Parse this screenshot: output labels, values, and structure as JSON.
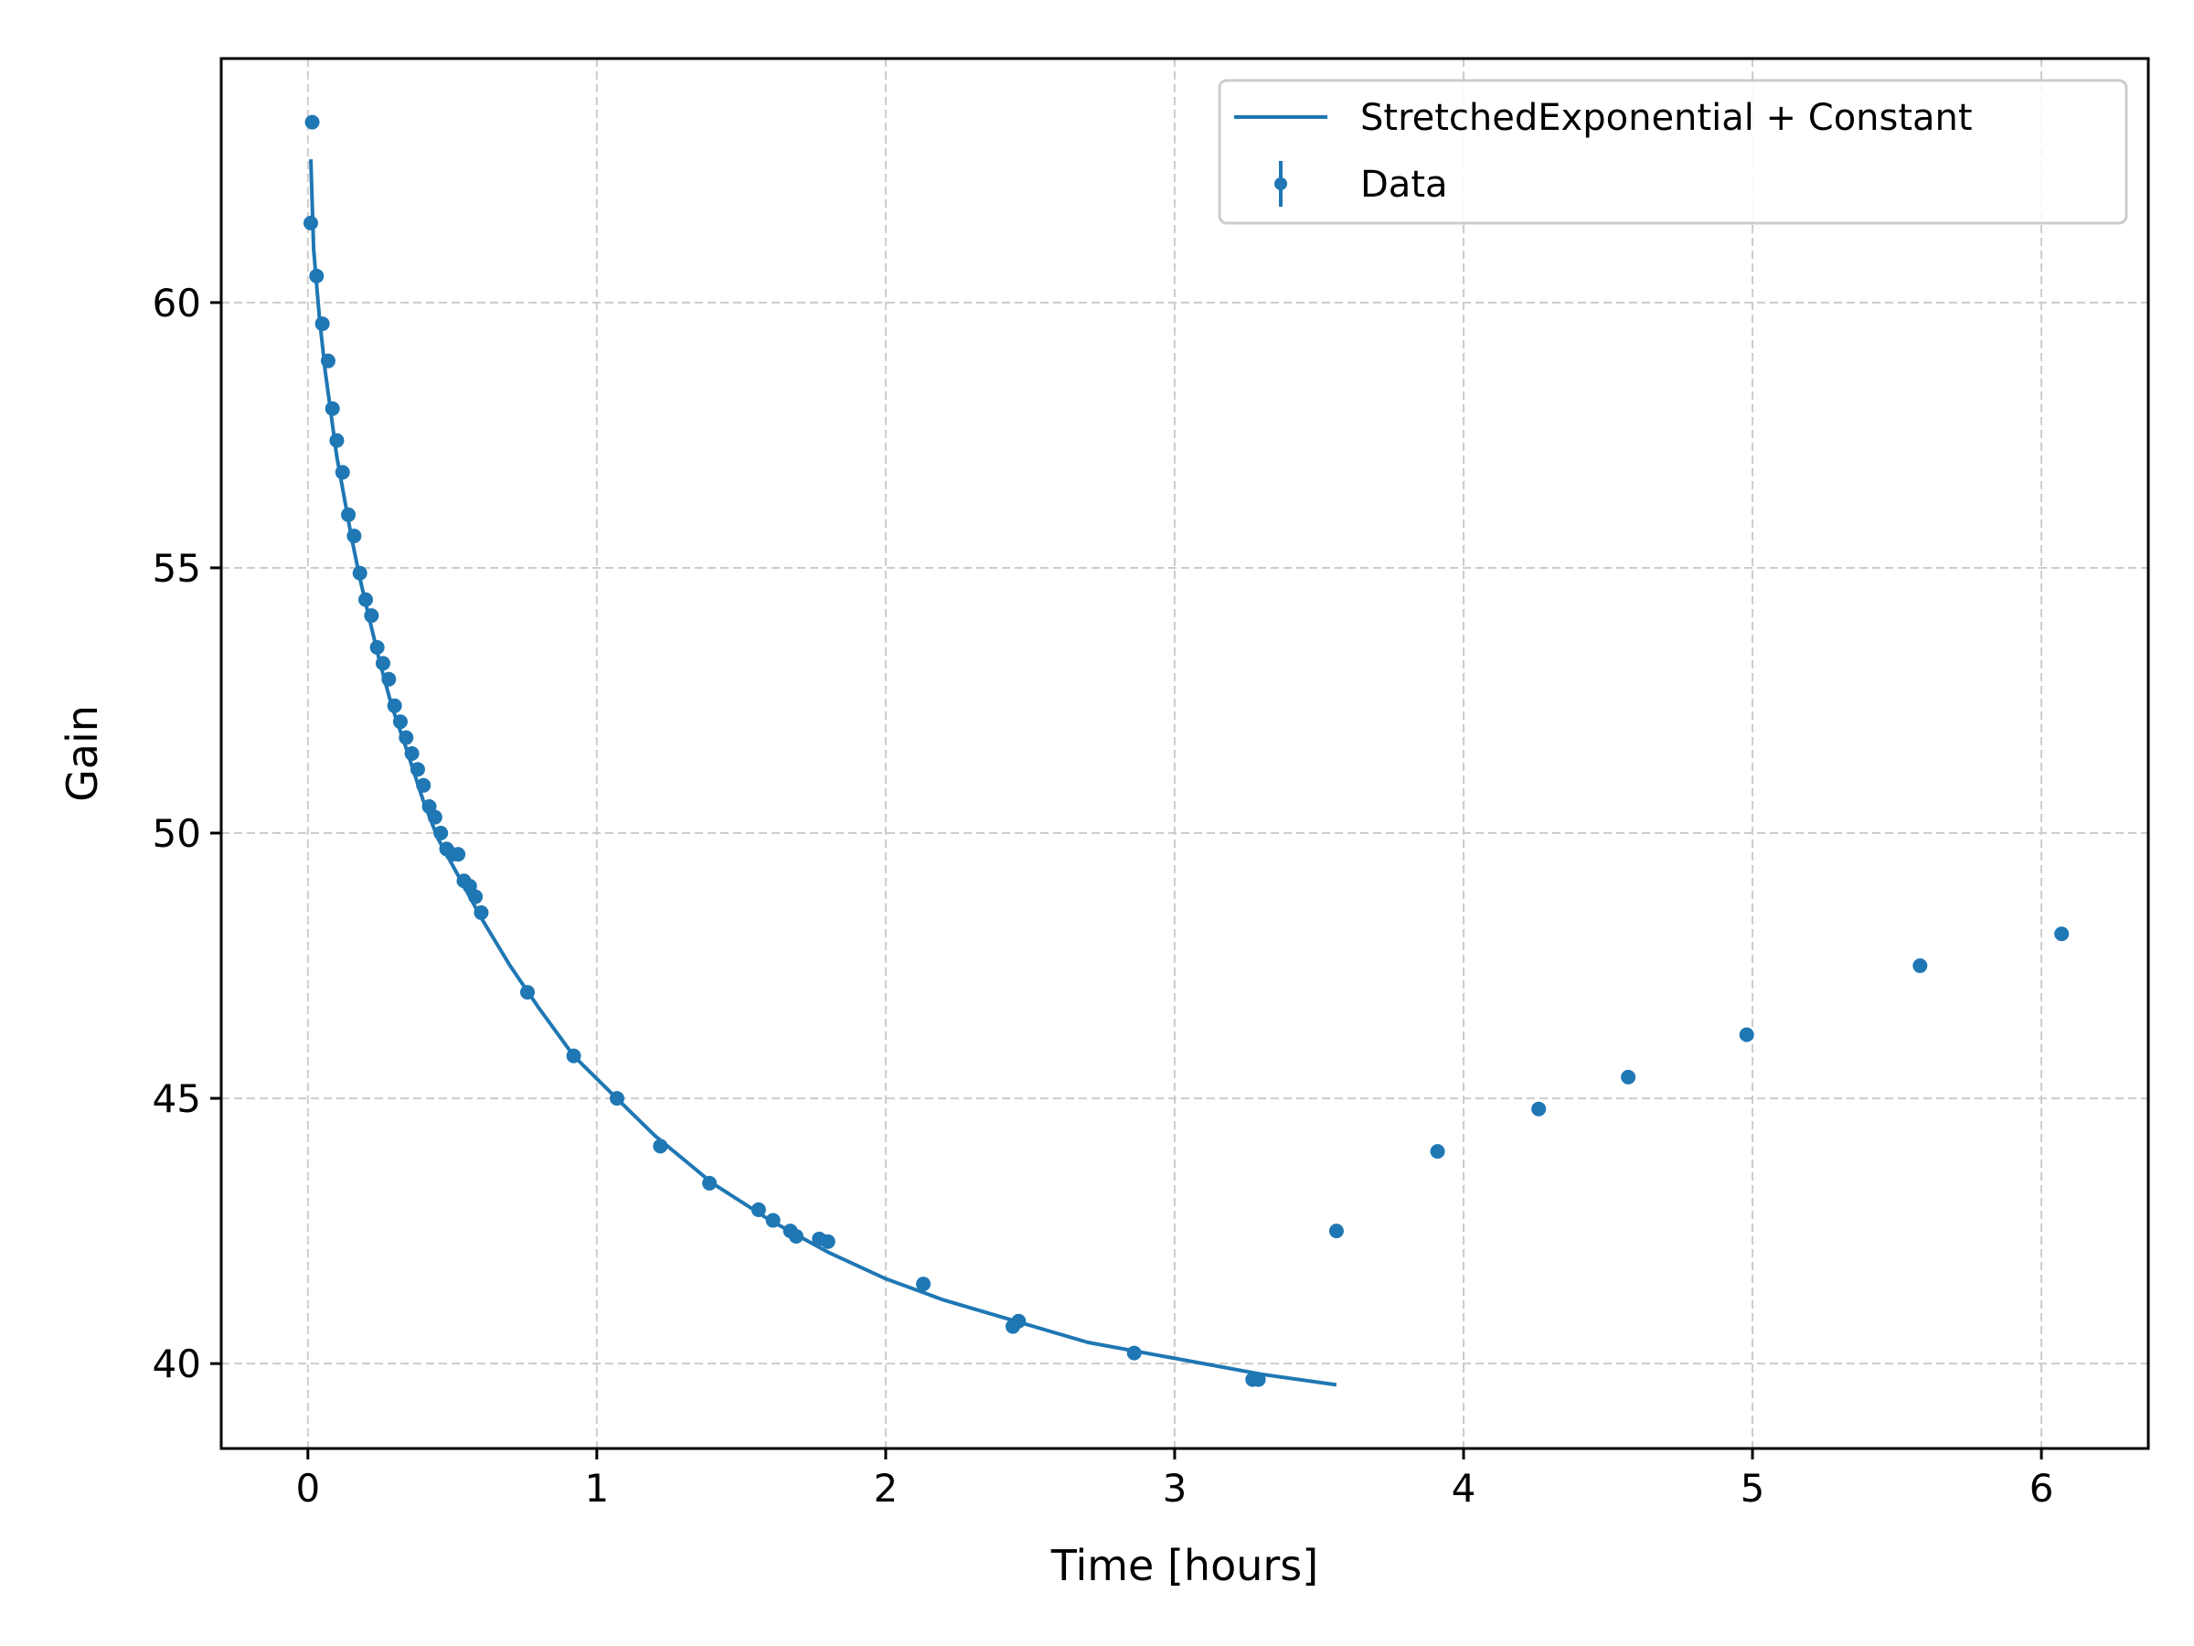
{
  "chart_data": {
    "type": "scatter",
    "title": "",
    "xlabel": "Time [hours]",
    "ylabel": "Gain",
    "xlim": [
      -0.3,
      6.37
    ],
    "ylim": [
      38.4,
      64.6
    ],
    "xticks": [
      0,
      1,
      2,
      3,
      4,
      5,
      6
    ],
    "yticks": [
      40,
      45,
      50,
      55,
      60
    ],
    "xtick_labels": [
      "0",
      "1",
      "2",
      "3",
      "4",
      "5",
      "6"
    ],
    "ytick_labels": [
      "40",
      "45",
      "50",
      "55",
      "60"
    ],
    "grid": true,
    "grid_style": "dashed",
    "legend_position": "top-right",
    "colors": {
      "series": "#1f77b4",
      "grid": "#cccccc",
      "axes": "#000000"
    },
    "series": [
      {
        "name": "StretchedExponential + Constant",
        "kind": "line",
        "x": [
          0.01,
          0.02,
          0.04,
          0.06,
          0.08,
          0.1,
          0.12,
          0.15,
          0.18,
          0.21,
          0.25,
          0.29,
          0.34,
          0.4,
          0.45,
          0.52,
          0.6,
          0.7,
          0.8,
          0.92,
          1.05,
          1.2,
          1.4,
          1.6,
          1.8,
          2.0,
          2.2,
          2.45,
          2.7,
          3.0,
          3.3,
          3.56
        ],
        "y": [
          62.7,
          61.0,
          59.7,
          58.7,
          57.9,
          57.1,
          56.5,
          55.6,
          54.8,
          54.1,
          53.2,
          52.4,
          51.6,
          50.6,
          49.9,
          49.2,
          48.4,
          47.5,
          46.7,
          45.8,
          45.1,
          44.3,
          43.4,
          42.7,
          42.1,
          41.6,
          41.2,
          40.8,
          40.4,
          40.1,
          39.8,
          39.6
        ]
      },
      {
        "name": "Data",
        "kind": "points",
        "x": [
          0.01,
          0.015,
          0.03,
          0.05,
          0.07,
          0.085,
          0.1,
          0.12,
          0.14,
          0.16,
          0.18,
          0.2,
          0.22,
          0.24,
          0.26,
          0.28,
          0.3,
          0.32,
          0.34,
          0.36,
          0.38,
          0.4,
          0.42,
          0.44,
          0.46,
          0.48,
          0.5,
          0.52,
          0.54,
          0.56,
          0.58,
          0.6,
          0.76,
          0.92,
          1.07,
          1.22,
          1.39,
          1.56,
          1.61,
          1.67,
          1.69,
          1.77,
          1.8,
          2.13,
          2.44,
          2.46,
          2.86,
          3.27,
          3.29,
          3.56,
          3.91,
          4.26,
          4.57,
          4.98,
          5.58,
          6.07
        ],
        "y": [
          61.5,
          63.4,
          60.5,
          59.6,
          58.9,
          58.0,
          57.4,
          56.8,
          56.0,
          55.6,
          54.9,
          54.4,
          54.1,
          53.5,
          53.2,
          52.9,
          52.4,
          52.1,
          51.8,
          51.5,
          51.2,
          50.9,
          50.5,
          50.3,
          50.0,
          49.7,
          49.6,
          49.6,
          49.1,
          49.0,
          48.8,
          48.5,
          47.0,
          45.8,
          45.0,
          44.1,
          43.4,
          42.9,
          42.7,
          42.5,
          42.4,
          42.35,
          42.3,
          41.5,
          40.7,
          40.8,
          40.2,
          39.7,
          39.7,
          42.5,
          44.0,
          44.8,
          45.4,
          46.2,
          47.5,
          48.1
        ]
      }
    ]
  }
}
